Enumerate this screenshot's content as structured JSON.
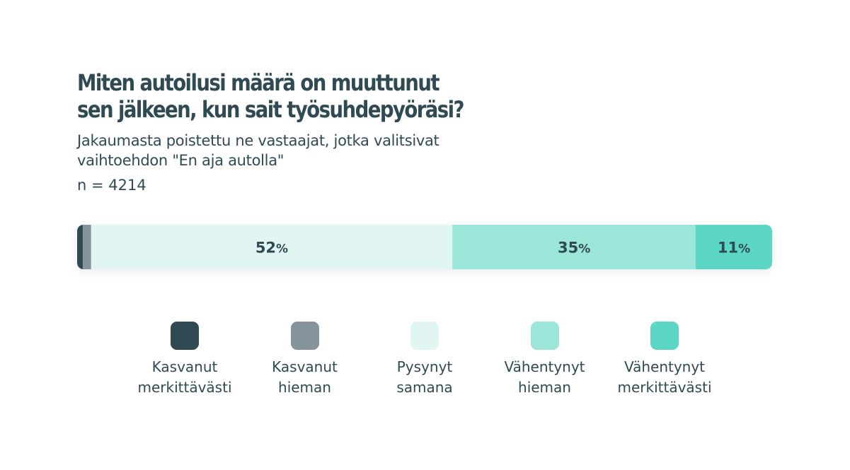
{
  "chart_data": {
    "type": "bar",
    "orientation": "horizontal-stacked-100",
    "title_lines": [
      "Miten autoilusi määrä on muuttunut",
      "sen jälkeen, kun sait työsuhdepyöräsi?"
    ],
    "subtitle_lines": [
      "Jakaumasta poistettu ne vastaajat, jotka valitsivat",
      "vaihtoehdon \"En aja autolla\""
    ],
    "n_label": "n = 4214",
    "unit": "%",
    "legend_position": "bottom",
    "grid": false,
    "series": [
      {
        "name": "Kasvanut merkittävästi",
        "name_lines": [
          "Kasvanut",
          "merkittävästi"
        ],
        "value": 0.8,
        "label": "",
        "color": "#2f4a52"
      },
      {
        "name": "Kasvanut hieman",
        "name_lines": [
          "Kasvanut",
          "hieman"
        ],
        "value": 1.2,
        "label": "",
        "color": "#85939a"
      },
      {
        "name": "Pysynyt samana",
        "name_lines": [
          "Pysynyt",
          "samana"
        ],
        "value": 52,
        "label": "52",
        "color": "#e1f6f3"
      },
      {
        "name": "Vähentynyt hieman",
        "name_lines": [
          "Vähentynyt",
          "hieman"
        ],
        "value": 35,
        "label": "35",
        "color": "#9be5d9"
      },
      {
        "name": "Vähentynyt merkittävästi",
        "name_lines": [
          "Vähentynyt",
          "merkittävästi"
        ],
        "value": 11,
        "label": "11",
        "color": "#5cd6c5"
      }
    ]
  }
}
